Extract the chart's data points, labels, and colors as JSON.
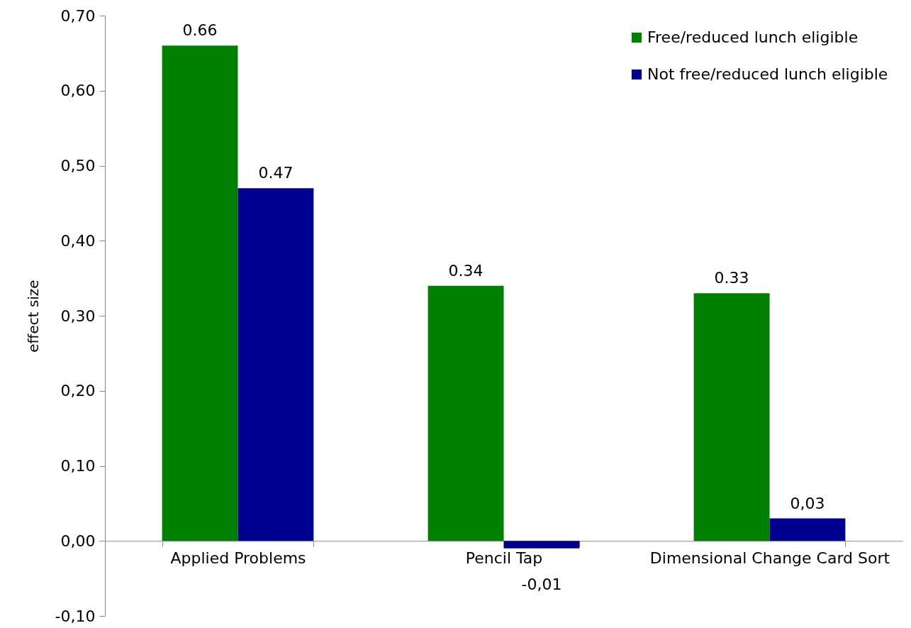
{
  "chart_data": {
    "type": "bar",
    "ylabel": "effect size",
    "categories": [
      "Applied Problems",
      "Pencil Tap",
      "Dimensional Change Card Sort"
    ],
    "series": [
      {
        "name": "Free/reduced lunch eligible",
        "color": "#008000",
        "values": [
          0.66,
          0.34,
          0.33
        ],
        "value_labels": [
          "0.66",
          "0.34",
          "0.33"
        ]
      },
      {
        "name": "Not free/reduced lunch eligible",
        "color": "#000090",
        "values": [
          0.47,
          -0.01,
          0.03
        ],
        "value_labels": [
          "0.47",
          "-0,01",
          "0,03"
        ]
      }
    ],
    "ylim": [
      -0.1,
      0.7
    ],
    "yticks": [
      {
        "value": -0.1,
        "label": "-0,10"
      },
      {
        "value": 0,
        "label": "0,00"
      },
      {
        "value": 0.1,
        "label": "0,10"
      },
      {
        "value": 0.2,
        "label": "0,20"
      },
      {
        "value": 0.3,
        "label": "0,30"
      },
      {
        "value": 0.4,
        "label": "0,40"
      },
      {
        "value": 0.5,
        "label": "0,50"
      },
      {
        "value": 0.6,
        "label": "0,60"
      },
      {
        "value": 0.7,
        "label": "0,70"
      }
    ],
    "grid": false,
    "legend": "top right"
  }
}
